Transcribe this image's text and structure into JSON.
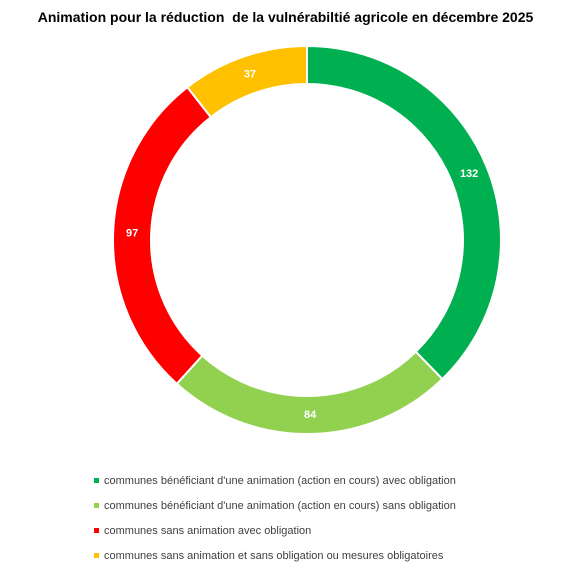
{
  "chart_data": {
    "type": "pie",
    "title": "Animation pour la réduction  de la vulnérabiltié agricole en décembre 2025",
    "series": [
      {
        "name": "communes bénéficiant d'une animation (action en cours) avec obligation",
        "value": 132,
        "color": "#00B050"
      },
      {
        "name": "communes bénéficiant d'une animation (action en cours) sans obligation",
        "value": 84,
        "color": "#92D050"
      },
      {
        "name": "communes sans animation avec obligation",
        "value": 97,
        "color": "#FF0000"
      },
      {
        "name": "communes sans animation et sans obligation ou mesures obligatoires",
        "value": 37,
        "color": "#FFC000"
      }
    ],
    "legend_position": "bottom",
    "data_labels": true
  }
}
